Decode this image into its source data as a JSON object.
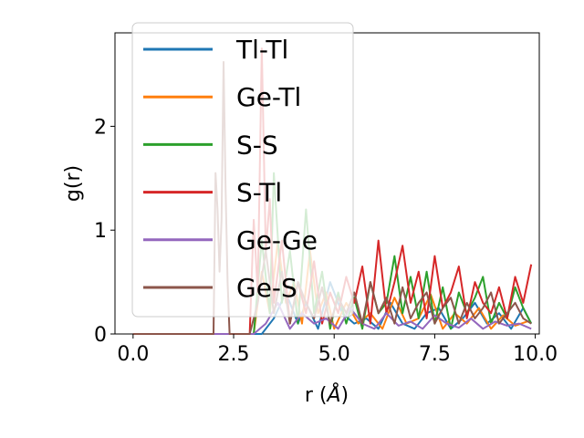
{
  "chart_data": {
    "type": "line",
    "title": "",
    "xlabel_base": "r (",
    "xlabel_unit": "Å",
    "xlabel_end": ")",
    "ylabel": "g(r)",
    "xlim": [
      -0.45,
      10.1
    ],
    "ylim": [
      0,
      2.9
    ],
    "xticks": [
      0.0,
      2.5,
      5.0,
      7.5,
      10.0
    ],
    "xtick_labels": [
      "0.0",
      "2.5",
      "5.0",
      "7.5",
      "10.0"
    ],
    "yticks": [
      0,
      1,
      2
    ],
    "ytick_labels": [
      "0",
      "1",
      "2"
    ],
    "grid": false,
    "legend_position": "top-left",
    "series": [
      {
        "name": "Tl-Tl",
        "color": "#1f77b4",
        "x": [
          0,
          1,
          2,
          3.2,
          3.5,
          3.8,
          4.1,
          4.3,
          4.6,
          4.9,
          5.2,
          5.5,
          5.8,
          6.1,
          6.4,
          6.7,
          7.0,
          7.3,
          7.6,
          7.9,
          8.2,
          8.5,
          8.8,
          9.1,
          9.4,
          9.7,
          9.9
        ],
        "y": [
          0,
          0,
          0,
          0,
          0.15,
          0.4,
          0.1,
          0.3,
          0.05,
          0.5,
          0.2,
          0.1,
          0.15,
          0.05,
          0.3,
          0.1,
          0.05,
          0.2,
          0.25,
          0.05,
          0.15,
          0.3,
          0.1,
          0.2,
          0.05,
          0.25,
          0.1
        ]
      },
      {
        "name": "Ge-Tl",
        "color": "#ff7f0e",
        "x": [
          0,
          1,
          2,
          3.0,
          3.2,
          3.4,
          3.6,
          3.8,
          4.0,
          4.2,
          4.4,
          4.6,
          4.8,
          5.0,
          5.3,
          5.6,
          5.9,
          6.2,
          6.5,
          6.8,
          7.1,
          7.4,
          7.7,
          8.0,
          8.3,
          8.6,
          8.9,
          9.2,
          9.5,
          9.8
        ],
        "y": [
          0,
          0,
          0,
          0,
          0.6,
          0.2,
          0.9,
          0.3,
          0.5,
          0.1,
          0.8,
          0.2,
          0.4,
          0.05,
          0.3,
          0.1,
          0.2,
          0.05,
          0.35,
          0.1,
          0.15,
          0.38,
          0.05,
          0.2,
          0.1,
          0.25,
          0.05,
          0.18,
          0.08,
          0.12
        ]
      },
      {
        "name": "S-S",
        "color": "#2ca02c",
        "x": [
          0,
          1,
          2,
          3.0,
          3.2,
          3.4,
          3.5,
          3.7,
          3.9,
          4.1,
          4.3,
          4.5,
          4.7,
          4.9,
          5.1,
          5.3,
          5.5,
          5.7,
          5.9,
          6.1,
          6.3,
          6.5,
          6.7,
          6.9,
          7.1,
          7.3,
          7.5,
          7.7,
          7.9,
          8.1,
          8.3,
          8.5,
          8.7,
          8.9,
          9.1,
          9.3,
          9.5,
          9.7,
          9.9
        ],
        "y": [
          0,
          0,
          0,
          0,
          0.9,
          0.2,
          1.55,
          0.3,
          0.8,
          0.1,
          1.2,
          0.2,
          0.6,
          0.05,
          0.4,
          0.1,
          0.35,
          0.05,
          0.5,
          0.2,
          0.3,
          0.75,
          0.2,
          0.55,
          0.15,
          0.6,
          0.1,
          0.45,
          0.05,
          0.4,
          0.2,
          0.35,
          0.55,
          0.1,
          0.3,
          0.15,
          0.45,
          0.25,
          0.1
        ]
      },
      {
        "name": "S-Tl",
        "color": "#d62728",
        "x": [
          0,
          1,
          2,
          2.9,
          3.0,
          3.1,
          3.2,
          3.3,
          3.4,
          3.5,
          3.7,
          3.9,
          4.1,
          4.3,
          4.5,
          4.7,
          4.9,
          5.1,
          5.3,
          5.5,
          5.7,
          5.9,
          6.1,
          6.3,
          6.5,
          6.7,
          6.9,
          7.1,
          7.3,
          7.5,
          7.7,
          7.9,
          8.1,
          8.3,
          8.5,
          8.7,
          8.9,
          9.1,
          9.3,
          9.5,
          9.7,
          9.9
        ],
        "y": [
          0,
          0,
          0,
          0,
          1.1,
          0.4,
          2.75,
          0.8,
          1.3,
          0.3,
          0.9,
          0.1,
          0.5,
          0.2,
          0.7,
          0.1,
          0.4,
          0.2,
          0.55,
          0.3,
          0.65,
          0.1,
          0.9,
          0.2,
          0.5,
          0.85,
          0.3,
          0.6,
          0.15,
          0.75,
          0.25,
          0.4,
          0.65,
          0.15,
          0.5,
          0.3,
          0.2,
          0.45,
          0.15,
          0.55,
          0.3,
          0.67
        ]
      },
      {
        "name": "Ge-Ge",
        "color": "#9467bd",
        "x": [
          0,
          1,
          2,
          3.0,
          3.3,
          3.6,
          3.9,
          4.2,
          4.5,
          4.8,
          5.1,
          5.4,
          5.7,
          6.0,
          6.3,
          6.6,
          6.9,
          7.2,
          7.5,
          7.8,
          8.1,
          8.4,
          8.7,
          9.0,
          9.3,
          9.6,
          9.9
        ],
        "y": [
          0,
          0,
          0,
          0,
          0.1,
          0.3,
          0.05,
          0.2,
          0.1,
          0.15,
          0.05,
          0.25,
          0.1,
          0.05,
          0.2,
          0.08,
          0.12,
          0.05,
          0.18,
          0.1,
          0.06,
          0.15,
          0.05,
          0.12,
          0.08,
          0.1,
          0.05
        ]
      },
      {
        "name": "Ge-S",
        "color": "#8c564b",
        "x": [
          0,
          1,
          2.0,
          2.05,
          2.1,
          2.15,
          2.2,
          2.25,
          2.3,
          2.35,
          2.4,
          2.5,
          2.7,
          2.9,
          3.1,
          3.3,
          3.5,
          3.7,
          3.9,
          4.1,
          4.3,
          4.5,
          4.7,
          4.9,
          5.1,
          5.3,
          5.5,
          5.7,
          5.9,
          6.1,
          6.3,
          6.5,
          6.7,
          6.9,
          7.1,
          7.3,
          7.5,
          7.7,
          7.9,
          8.1,
          8.3,
          8.5,
          8.7,
          8.9,
          9.1,
          9.3,
          9.5,
          9.7,
          9.9
        ],
        "y": [
          0,
          0,
          0,
          1.55,
          1.2,
          0.6,
          1.1,
          2.62,
          1.4,
          0.5,
          0,
          0,
          0,
          0,
          0.3,
          0.8,
          0.2,
          0.6,
          0.1,
          0.5,
          0.3,
          0.15,
          0.45,
          0.1,
          0.35,
          0.2,
          0.4,
          0.1,
          0.5,
          0.2,
          0.35,
          0.1,
          0.45,
          0.15,
          0.3,
          0.4,
          0.1,
          0.25,
          0.35,
          0.1,
          0.3,
          0.15,
          0.25,
          0.4,
          0.1,
          0.2,
          0.3,
          0.15,
          0.1
        ]
      }
    ]
  }
}
